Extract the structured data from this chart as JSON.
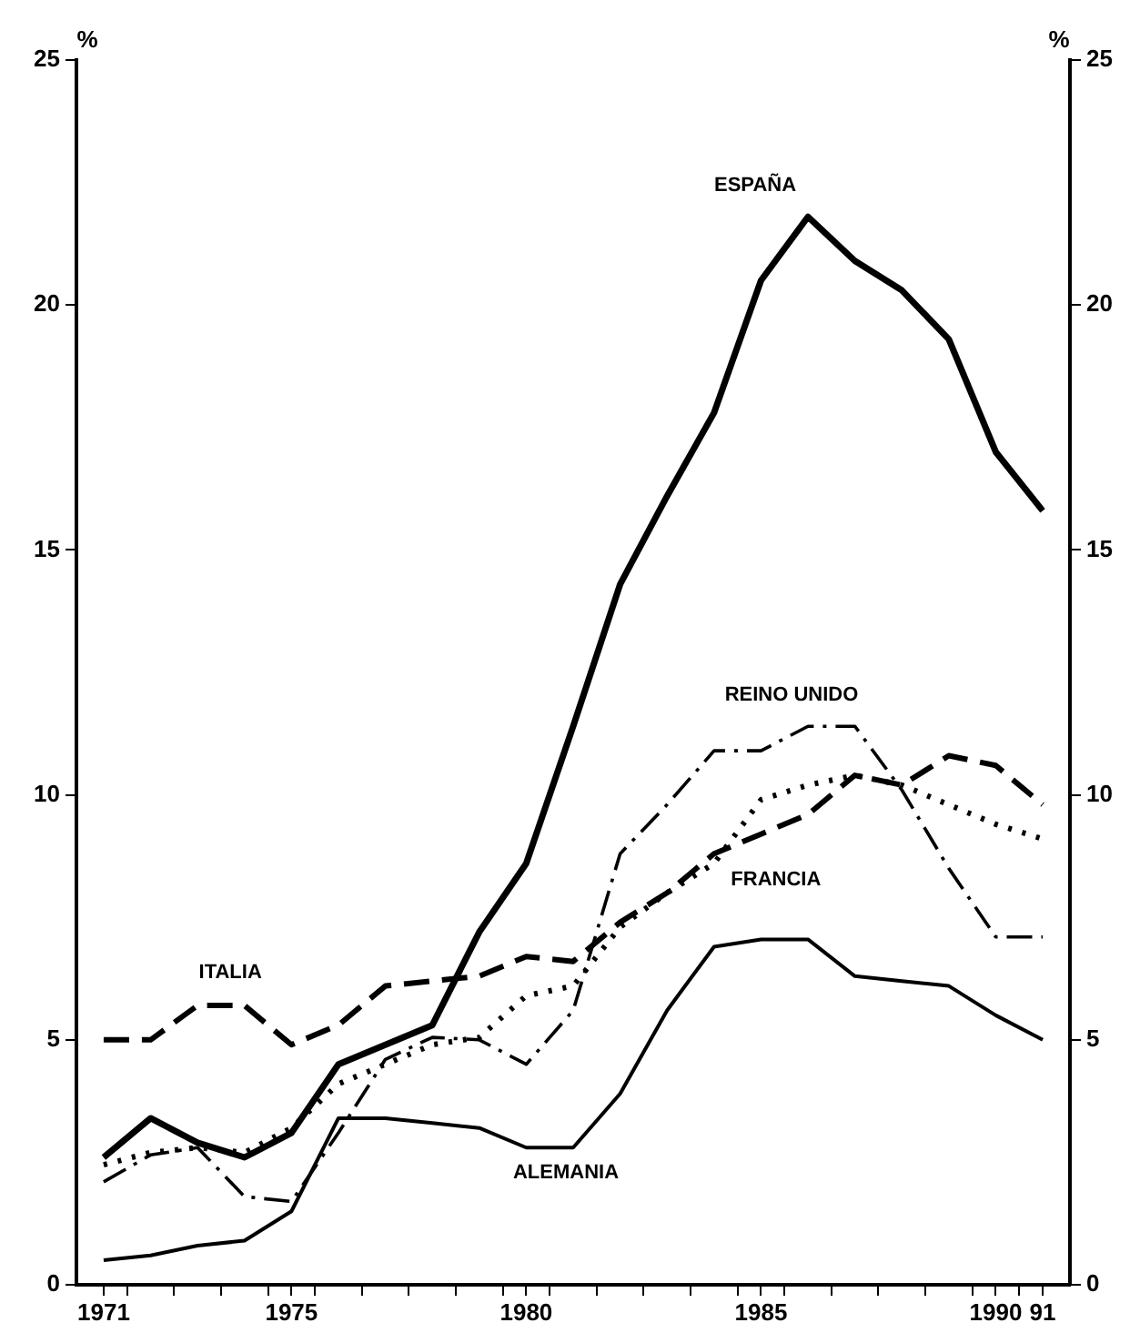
{
  "chart_data": {
    "type": "line",
    "ylabel": "%",
    "y2label": "%",
    "x": [
      1971,
      1972,
      1973,
      1974,
      1975,
      1976,
      1977,
      1978,
      1979,
      1980,
      1981,
      1982,
      1983,
      1984,
      1985,
      1986,
      1987,
      1988,
      1989,
      1990,
      1991
    ],
    "xlim": [
      1970.42,
      1991.58
    ],
    "xticks": [
      1971,
      {
        "value": 1971.5,
        "label": null
      },
      {
        "value": 1972.5,
        "label": null
      },
      {
        "value": 1973.5,
        "label": null
      },
      {
        "value": 1974.5,
        "label": null
      },
      1975,
      {
        "value": 1975.5,
        "label": null
      },
      {
        "value": 1976.5,
        "label": null
      },
      {
        "value": 1977.5,
        "label": null
      },
      {
        "value": 1978.5,
        "label": null
      },
      {
        "value": 1979.5,
        "label": null
      },
      1980,
      {
        "value": 1980.5,
        "label": null
      },
      {
        "value": 1981.5,
        "label": null
      },
      {
        "value": 1982.5,
        "label": null
      },
      {
        "value": 1983.5,
        "label": null
      },
      {
        "value": 1984.5,
        "label": null
      },
      1985,
      {
        "value": 1985.5,
        "label": null
      },
      {
        "value": 1986.5,
        "label": null
      },
      {
        "value": 1987.5,
        "label": null
      },
      {
        "value": 1988.5,
        "label": null
      },
      {
        "value": 1989.5,
        "label": null
      },
      1990,
      {
        "value": 1990.5,
        "label": null
      },
      {
        "value": 1991,
        "label": "91"
      }
    ],
    "ylim": [
      0,
      25
    ],
    "yticks": [
      0,
      5,
      10,
      15,
      20,
      25
    ],
    "y2lim": [
      0,
      25
    ],
    "y2ticks": [
      0,
      5,
      10,
      15,
      20,
      25
    ],
    "grid": false,
    "legend": false,
    "marker": "none",
    "series": [
      {
        "name": "ESPAÑA",
        "color": "#000000",
        "line_style": "solid",
        "values": [
          2.6,
          3.4,
          2.9,
          2.6,
          3.1,
          4.5,
          4.9,
          5.3,
          7.2,
          8.6,
          11.4,
          14.3,
          16.1,
          17.8,
          20.5,
          21.8,
          20.9,
          20.3,
          19.3,
          17.0,
          15.8
        ]
      },
      {
        "name": "ITALIA",
        "color": "#000000",
        "line_style": "dashed",
        "values": [
          5.0,
          5.0,
          5.7,
          5.7,
          4.9,
          5.3,
          6.1,
          6.2,
          6.3,
          6.7,
          6.6,
          7.4,
          8.0,
          8.8,
          9.2,
          9.6,
          10.4,
          10.2,
          10.8,
          10.6,
          9.8
        ]
      },
      {
        "name": "FRANCIA",
        "color": "#000000",
        "line_style": "dotted",
        "values": [
          2.45,
          2.7,
          2.8,
          2.7,
          3.2,
          4.1,
          4.5,
          4.9,
          5.05,
          5.9,
          6.1,
          7.3,
          8.0,
          8.6,
          9.9,
          10.2,
          10.4,
          10.2,
          9.8,
          9.4,
          9.1
        ]
      },
      {
        "name": "REINO UNIDO",
        "color": "#000000",
        "line_style": "dashdot",
        "values": [
          2.1,
          2.65,
          2.8,
          1.8,
          1.7,
          3.1,
          4.6,
          5.05,
          5.0,
          4.5,
          5.6,
          8.8,
          9.8,
          10.9,
          10.9,
          11.4,
          11.4,
          10.1,
          8.5,
          7.1,
          7.1
        ]
      },
      {
        "name": "ALEMANIA",
        "color": "#000000",
        "line_style": "solid",
        "values": [
          0.5,
          0.6,
          0.8,
          0.9,
          1.5,
          3.4,
          3.4,
          3.3,
          3.2,
          2.8,
          2.8,
          3.9,
          5.6,
          6.9,
          7.05,
          7.05,
          6.3,
          6.2,
          6.1,
          5.5,
          5.0
        ]
      }
    ]
  }
}
